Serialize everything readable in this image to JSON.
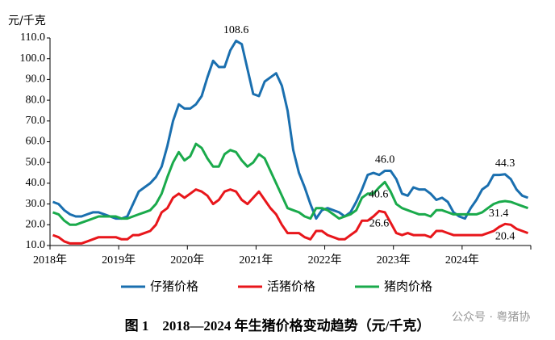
{
  "chart_data": {
    "type": "line",
    "y_label": "元/千克",
    "caption": "图 1　2018—2024 年生猪价格变动趋势（元/千克）",
    "watermark": "公众号 · 粤猪协",
    "categories": [
      "2018年",
      null,
      null,
      null,
      null,
      null,
      null,
      null,
      null,
      null,
      null,
      null,
      "2019年",
      null,
      null,
      null,
      null,
      null,
      null,
      null,
      null,
      null,
      null,
      null,
      "2020年",
      null,
      null,
      null,
      null,
      null,
      null,
      null,
      null,
      null,
      null,
      null,
      "2021年",
      null,
      null,
      null,
      null,
      null,
      null,
      null,
      null,
      null,
      null,
      null,
      "2022年",
      null,
      null,
      null,
      null,
      null,
      null,
      null,
      null,
      null,
      null,
      null,
      "2023年",
      null,
      null,
      null,
      null,
      null,
      null,
      null,
      null,
      null,
      null,
      null,
      "2024年",
      null,
      null,
      null,
      null,
      null,
      null,
      null,
      null,
      null,
      null,
      null
    ],
    "series": [
      {
        "name": "仔猪价格",
        "color": "#1a6faf",
        "values": [
          31,
          30,
          27,
          25,
          24,
          24,
          25,
          26,
          26,
          25,
          24,
          23,
          23,
          24,
          30,
          36,
          38,
          40,
          43,
          48,
          58,
          70,
          78,
          76,
          76,
          78,
          82,
          91,
          99,
          96,
          96,
          104,
          108.6,
          107,
          95,
          83,
          82,
          89,
          91,
          93,
          87,
          75,
          56,
          45,
          38,
          30,
          23,
          27,
          28,
          27,
          26,
          24,
          26,
          31,
          37,
          44,
          45,
          44,
          46.0,
          46,
          42,
          35,
          34,
          38,
          37,
          37,
          35,
          32,
          33,
          31,
          26,
          24,
          23,
          28,
          32,
          37,
          39,
          44,
          44,
          44.3,
          42,
          37,
          34,
          33
        ],
        "value_labels": [
          null,
          null,
          null,
          null,
          null,
          null,
          null,
          null,
          null,
          null,
          null,
          null,
          null,
          null,
          null,
          null,
          null,
          null,
          null,
          null,
          null,
          null,
          null,
          null,
          null,
          null,
          null,
          null,
          null,
          null,
          null,
          null,
          "108.6",
          null,
          null,
          null,
          null,
          null,
          null,
          null,
          null,
          null,
          null,
          null,
          null,
          null,
          null,
          null,
          null,
          null,
          null,
          null,
          null,
          null,
          null,
          null,
          null,
          null,
          "46.0",
          null,
          null,
          null,
          null,
          null,
          null,
          null,
          null,
          null,
          null,
          null,
          null,
          null,
          null,
          null,
          null,
          null,
          null,
          null,
          null,
          "44.3",
          null,
          null,
          null,
          null
        ]
      },
      {
        "name": "活猪价格",
        "color": "#e8161b",
        "values": [
          15,
          14,
          12,
          11,
          11,
          11,
          12,
          13,
          14,
          14,
          14,
          14,
          13,
          13,
          15,
          15,
          16,
          17,
          20,
          26,
          28,
          33,
          35,
          33,
          35,
          37,
          36,
          34,
          30,
          32,
          36,
          37,
          36,
          32,
          30,
          33,
          36,
          32,
          28,
          25,
          20,
          16,
          16,
          16,
          14,
          13,
          17,
          17,
          15,
          14,
          13,
          13,
          15,
          17,
          22,
          22,
          24,
          26.6,
          26,
          21,
          16,
          15,
          16,
          15,
          15,
          15,
          14,
          17,
          17,
          16,
          15,
          15,
          15,
          15,
          15,
          15,
          16,
          17,
          19,
          20.4,
          20,
          18,
          17,
          16
        ],
        "value_labels": [
          null,
          null,
          null,
          null,
          null,
          null,
          null,
          null,
          null,
          null,
          null,
          null,
          null,
          null,
          null,
          null,
          null,
          null,
          null,
          null,
          null,
          null,
          null,
          null,
          null,
          null,
          null,
          null,
          null,
          null,
          null,
          null,
          null,
          null,
          null,
          null,
          null,
          null,
          null,
          null,
          null,
          null,
          null,
          null,
          null,
          null,
          null,
          null,
          null,
          null,
          null,
          null,
          null,
          null,
          null,
          null,
          null,
          "26.6",
          null,
          null,
          null,
          null,
          null,
          null,
          null,
          null,
          null,
          null,
          null,
          null,
          null,
          null,
          null,
          null,
          null,
          null,
          null,
          null,
          null,
          "20.4",
          null,
          null,
          null,
          null
        ]
      },
      {
        "name": "猪肉价格",
        "color": "#1aaa4b",
        "values": [
          26,
          25,
          22,
          20,
          20,
          21,
          22,
          23,
          24,
          24,
          24,
          24,
          23,
          23,
          24,
          25,
          26,
          27,
          30,
          35,
          43,
          50,
          55,
          51,
          53,
          59,
          57,
          52,
          48,
          48,
          54,
          56,
          55,
          51,
          48,
          50,
          54,
          52,
          46,
          40,
          34,
          28,
          27,
          26,
          24,
          23,
          28,
          28,
          27,
          25,
          23,
          24,
          25,
          27,
          33,
          35,
          35,
          38,
          40.6,
          36,
          30,
          28,
          27,
          26,
          25,
          25,
          24,
          27,
          27,
          26,
          25,
          25,
          25,
          25,
          25,
          26,
          28,
          30,
          31,
          31.4,
          31,
          30,
          29,
          28
        ],
        "value_labels": [
          null,
          null,
          null,
          null,
          null,
          null,
          null,
          null,
          null,
          null,
          null,
          null,
          null,
          null,
          null,
          null,
          null,
          null,
          null,
          null,
          null,
          null,
          null,
          null,
          null,
          null,
          null,
          null,
          null,
          null,
          null,
          null,
          null,
          null,
          null,
          null,
          null,
          null,
          null,
          null,
          null,
          null,
          null,
          null,
          null,
          null,
          null,
          null,
          null,
          null,
          null,
          null,
          null,
          null,
          null,
          null,
          null,
          null,
          "40.6",
          null,
          null,
          null,
          null,
          null,
          null,
          null,
          null,
          null,
          null,
          null,
          null,
          null,
          null,
          null,
          null,
          null,
          null,
          null,
          null,
          "31.4",
          null,
          null,
          null,
          null
        ]
      }
    ],
    "ylim": [
      10,
      110
    ],
    "yticks": [
      {
        "value": 10,
        "label": "10.0"
      },
      {
        "value": 20,
        "label": "20.0"
      },
      {
        "value": 30,
        "label": "30.0"
      },
      {
        "value": 40,
        "label": "40.0"
      },
      {
        "value": 50,
        "label": "50.0"
      },
      {
        "value": 60,
        "label": "60.0"
      },
      {
        "value": 70,
        "label": "70.0"
      },
      {
        "value": 80,
        "label": "80.0"
      },
      {
        "value": 90,
        "label": "90.0"
      },
      {
        "value": 100,
        "label": "100.0"
      },
      {
        "value": 110,
        "label": "110.0"
      }
    ],
    "grid": false,
    "legend": "bottom"
  }
}
